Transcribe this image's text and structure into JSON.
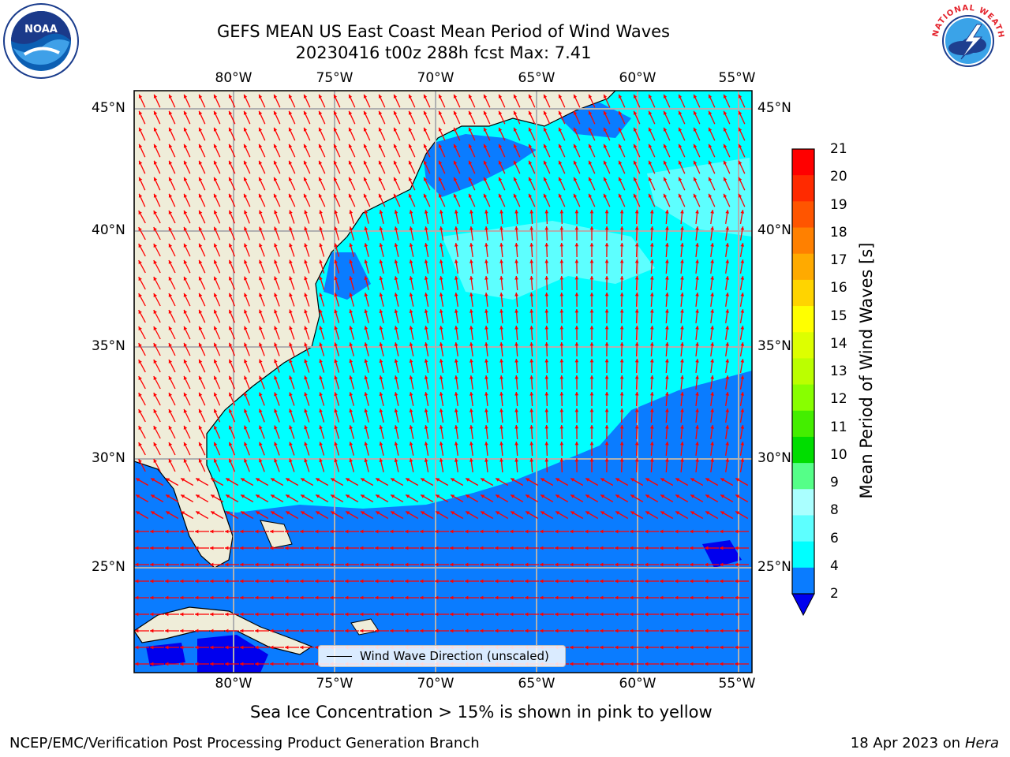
{
  "header": {
    "title_line1": "GEFS MEAN US East Coast Mean Period of Wind Waves",
    "title_line2": "20230416 t00z 288h fcst   Max: 7.41"
  },
  "logos": {
    "left": "NOAA",
    "right": "NATIONAL WEATHER SERVICE"
  },
  "map": {
    "lon_labels": [
      "80°W",
      "75°W",
      "70°W",
      "65°W",
      "60°W",
      "55°W"
    ],
    "lat_labels": [
      "45°N",
      "40°N",
      "35°N",
      "30°N",
      "25°N"
    ],
    "legend_label": "Wind Wave Direction (unscaled)",
    "colors": {
      "land": "#efedd9",
      "water_light": "#5dffff",
      "water_cyan": "#00ffff",
      "water_blue": "#0a7cff",
      "water_dark": "#0000ee",
      "arrow": "#ff0000",
      "grid": "#b0b0b0"
    }
  },
  "colorbar": {
    "label": "Mean Period of Wind Waves [s]",
    "ticks": [
      "21",
      "20",
      "19",
      "18",
      "17",
      "16",
      "15",
      "14",
      "13",
      "12",
      "11",
      "10",
      "9",
      "8",
      "6",
      "4",
      "2"
    ],
    "colors": [
      "#ff0000",
      "#ff2a00",
      "#ff5500",
      "#ff8000",
      "#ffaa00",
      "#ffd400",
      "#ffff00",
      "#ddff00",
      "#bbff00",
      "#88ff00",
      "#44ee00",
      "#00dd00",
      "#55ff88",
      "#aaffff",
      "#5dffff",
      "#00ffff",
      "#0a7cff"
    ],
    "extend_color": "#0000ee"
  },
  "subtitle": "Sea Ice Concentration > 15% is shown in pink to yellow",
  "footer": {
    "left": "NCEP/EMC/Verification Post Processing Product Generation Branch",
    "date": "18 Apr 2023 on ",
    "machine": "Hera"
  }
}
